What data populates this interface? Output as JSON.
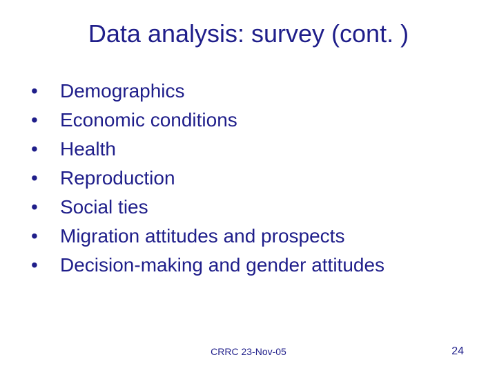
{
  "slide": {
    "title": "Data analysis: survey (cont. )",
    "title_color": "#1f1e8a",
    "title_fontsize": 36,
    "background_color": "#ffffff",
    "bullets": {
      "color": "#1f1e8a",
      "fontsize": 28,
      "marker": "•",
      "items": [
        "Demographics",
        "Economic conditions",
        "Health",
        "Reproduction",
        "Social ties",
        "Migration attitudes and prospects",
        "Decision-making and gender attitudes"
      ]
    },
    "footer": {
      "center_text": "CRRC 23-Nov-05",
      "page_number": "24",
      "color": "#1f1e8a",
      "center_fontsize": 14,
      "page_fontsize": 16
    }
  }
}
